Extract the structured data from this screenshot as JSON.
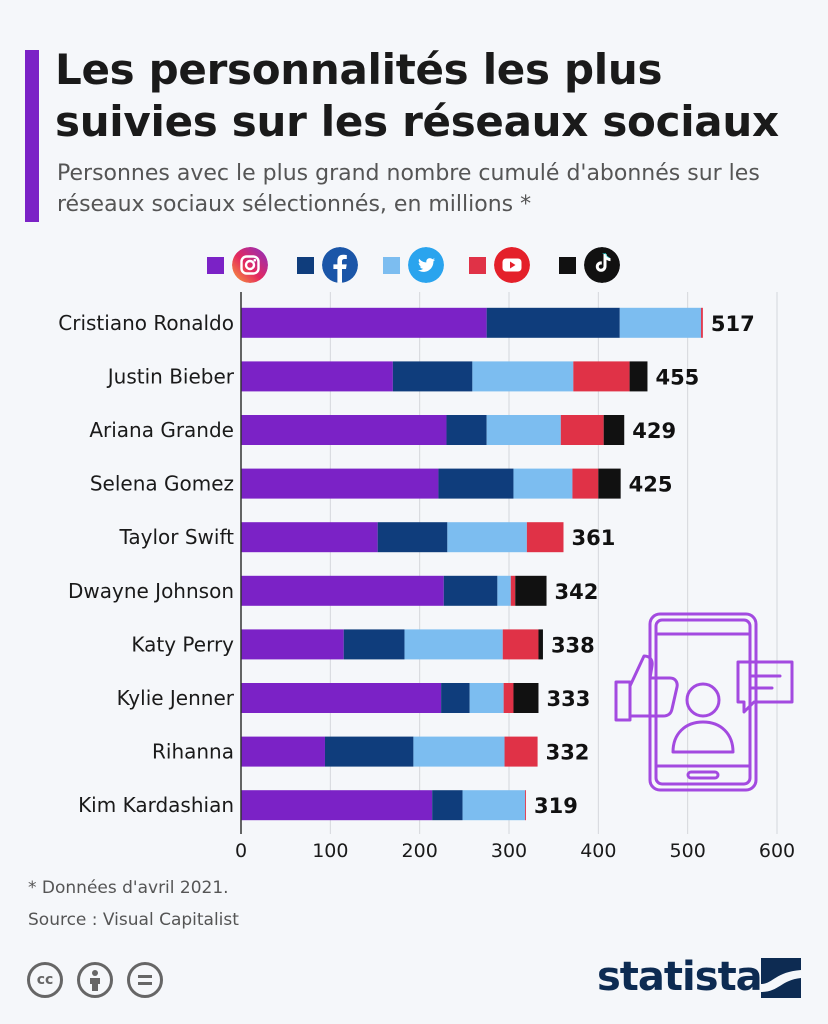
{
  "header": {
    "title": "Les personnalités les plus suivies sur les réseaux sociaux",
    "subtitle": "Personnes avec le plus grand nombre cumulé d'abonnés sur les réseaux sociaux sélectionnés, en millions *"
  },
  "legend": [
    {
      "icon": "instagram-icon",
      "color": "#7b22c6"
    },
    {
      "icon": "facebook-icon",
      "color": "#0f3d7c"
    },
    {
      "icon": "twitter-icon",
      "color": "#7cbdf0"
    },
    {
      "icon": "youtube-icon",
      "color": "#e03247"
    },
    {
      "icon": "tiktok-icon",
      "color": "#111111"
    }
  ],
  "chart_data": {
    "type": "bar",
    "orientation": "horizontal",
    "stacked": true,
    "categories": [
      "Cristiano Ronaldo",
      "Justin Bieber",
      "Ariana Grande",
      "Selena Gomez",
      "Taylor Swift",
      "Dwayne Johnson",
      "Katy Perry",
      "Kylie Jenner",
      "Rihanna",
      "Kim Kardashian"
    ],
    "series": [
      {
        "key": "instagram",
        "color": "#7b22c6",
        "values": [
          275,
          170,
          230,
          221,
          153,
          227,
          115,
          224,
          94,
          214
        ]
      },
      {
        "key": "facebook",
        "color": "#0f3d7c",
        "values": [
          149,
          89,
          45,
          84,
          78,
          60,
          68,
          32,
          99,
          34
        ]
      },
      {
        "key": "twitter",
        "color": "#7cbdf0",
        "values": [
          91,
          113,
          83,
          66,
          89,
          15,
          110,
          38,
          102,
          70
        ]
      },
      {
        "key": "youtube",
        "color": "#e03247",
        "values": [
          2,
          63,
          48,
          29,
          41,
          5,
          40,
          11,
          37,
          1
        ]
      },
      {
        "key": "tiktok",
        "color": "#111111",
        "values": [
          0,
          20,
          23,
          25,
          0,
          35,
          5,
          28,
          0,
          0
        ]
      }
    ],
    "totals": [
      "517",
      "455",
      "429",
      "425",
      "361",
      "342",
      "338",
      "333",
      "332",
      "319"
    ],
    "xticks": [
      "0",
      "100",
      "200",
      "300",
      "400",
      "500",
      "600"
    ],
    "xlim": [
      0,
      600
    ],
    "grid": true,
    "legend_position": "top"
  },
  "footer": {
    "footnote": "* Données d'avril 2021.",
    "source": "Source : Visual Capitalist",
    "brand": "statista",
    "license_icons": [
      "creative-commons-icon",
      "attribution-icon",
      "no-derivatives-icon"
    ]
  }
}
